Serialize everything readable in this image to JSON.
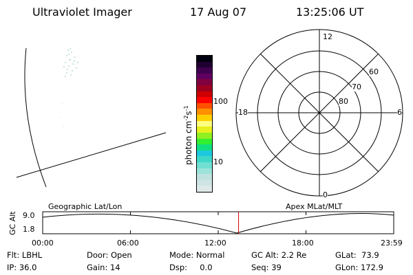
{
  "header": {
    "instrument": "Ultraviolet Imager",
    "date": "17 Aug 07",
    "time": "13:25:06 UT"
  },
  "colorbar": {
    "unit_label": "photon cm",
    "unit_exp1": "-2",
    "unit_s": "s",
    "unit_exp2": "-1",
    "tick_labels": [
      "100",
      "10"
    ],
    "colors": [
      "#dfe8e8",
      "#cfe4e4",
      "#bfe2e0",
      "#9ee3db",
      "#6fe0d2",
      "#3fd8c8",
      "#1ec8e0",
      "#10e080",
      "#30f030",
      "#90f020",
      "#e8f020",
      "#ffff80",
      "#ffd000",
      "#ff9000",
      "#ff5000",
      "#ff0000",
      "#d00000",
      "#a00020",
      "#800040",
      "#600060",
      "#400050",
      "#200030",
      "#000010"
    ]
  },
  "polar_plot": {
    "mlt_labels": {
      "top": "12",
      "bottom": "0",
      "left": "18",
      "right": "6"
    },
    "lat_labels": [
      "60",
      "70",
      "80"
    ]
  },
  "map_panel": {
    "left_title": "Geographic Lat/Lon",
    "right_title": "Apex MLat/MLT"
  },
  "altitude_strip": {
    "axis_label": "GC Alt",
    "y_max": "9.0",
    "y_min": "1.8",
    "x_ticks": [
      "00:00",
      "06:00",
      "12:00",
      "18:00",
      "23:59"
    ],
    "current_time_fraction": 0.558,
    "marker_color": "#cc0000"
  },
  "status": {
    "row1": {
      "flt": "Flt: LBHL",
      "door": "Door: Open",
      "mode": "Mode: Normal",
      "gc_alt": "GC Alt: 2.2 Re",
      "glat": "GLat:  73.9"
    },
    "row2": {
      "ip": "IP: 36.0",
      "gain": "Gain: 14",
      "dsp": "Dsp:     0.0",
      "seq": "Seq: 39",
      "glon": "GLon: 172.9"
    }
  }
}
